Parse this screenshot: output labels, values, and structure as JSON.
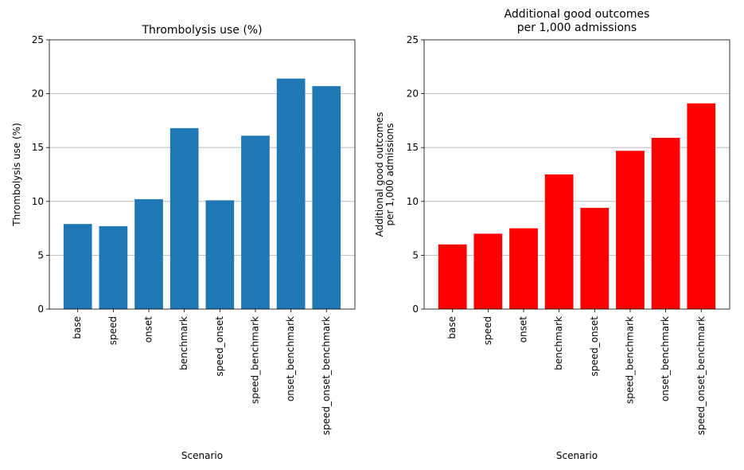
{
  "chart_data": [
    {
      "type": "bar",
      "title": "Thrombolysis use (%)",
      "xlabel": "Scenario",
      "ylabel": "Thrombolysis use (%)",
      "ylim": [
        0,
        25
      ],
      "yticks": [
        0,
        5,
        10,
        15,
        20,
        25
      ],
      "grid": "y",
      "color": "#1f77b4",
      "categories": [
        "base",
        "speed",
        "onset",
        "benchmark",
        "speed_onset",
        "speed_benchmark",
        "onset_benchmark",
        "speed_onset_benchmark"
      ],
      "values": [
        7.9,
        7.7,
        10.2,
        16.8,
        10.1,
        16.1,
        21.4,
        20.7
      ]
    },
    {
      "type": "bar",
      "title": [
        "Additional good outcomes",
        "per 1,000 admissions"
      ],
      "xlabel": "Scenario",
      "ylabel": [
        "Additional good outcomes",
        "per 1,000 admissions"
      ],
      "ylim": [
        0,
        25
      ],
      "yticks": [
        0,
        5,
        10,
        15,
        20,
        25
      ],
      "grid": "y",
      "color": "#ff0000",
      "categories": [
        "base",
        "speed",
        "onset",
        "benchmark",
        "speed_onset",
        "speed_benchmark",
        "onset_benchmark",
        "speed_onset_benchmark"
      ],
      "values": [
        6.0,
        7.0,
        7.5,
        12.5,
        9.4,
        14.7,
        15.9,
        19.1
      ]
    }
  ]
}
